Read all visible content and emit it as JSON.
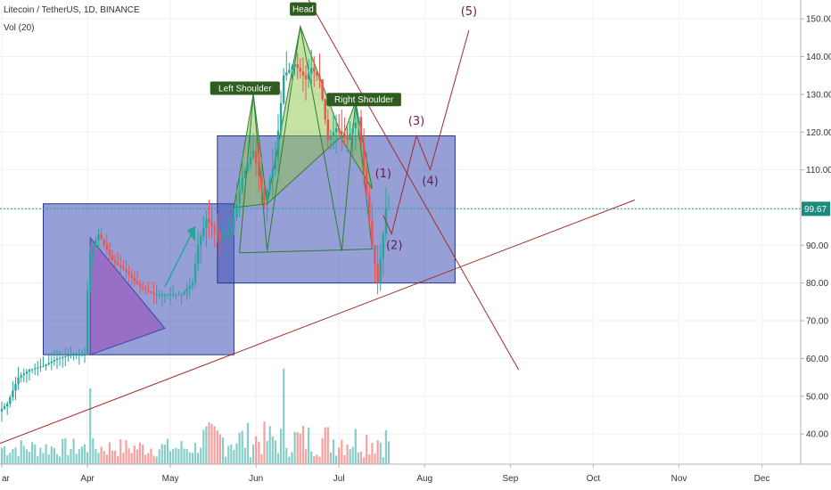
{
  "header": {
    "symbol": "Litecoin / TetherUS, 1D, BINANCE",
    "volume_indicator": "Vol (20)"
  },
  "colors": {
    "up": "#26a69a",
    "down": "#ef5350",
    "box_fill": "#3f51b5",
    "pattern_fill_green": "#8bc34a",
    "pattern_fill_purple": "#9c27b0",
    "trendline": "#a52a2a",
    "label_bg": "#2e5d1f",
    "wave_label": "#6a1b4d",
    "price_line": "#26a69a",
    "price_badge": "#1b8a7f"
  },
  "chart_data": {
    "type": "candlestick",
    "x_axis": {
      "type": "date",
      "range": [
        "2019-03-01",
        "2019-12-31"
      ],
      "tick_labels": [
        {
          "date": "2019-03-01",
          "label": "ar"
        },
        {
          "date": "2019-04-01",
          "label": "Apr"
        },
        {
          "date": "2019-05-01",
          "label": "May"
        },
        {
          "date": "2019-06-01",
          "label": "Jun"
        },
        {
          "date": "2019-07-01",
          "label": "Jul"
        },
        {
          "date": "2019-08-01",
          "label": "Aug"
        },
        {
          "date": "2019-09-01",
          "label": "Sep"
        },
        {
          "date": "2019-10-01",
          "label": "Oct"
        },
        {
          "date": "2019-11-01",
          "label": "Nov"
        },
        {
          "date": "2019-12-01",
          "label": "Dec"
        }
      ]
    },
    "y_axis": {
      "range": [
        32,
        155
      ],
      "ticks": [
        40,
        50,
        60,
        70,
        80,
        90,
        100,
        110,
        120,
        130,
        140,
        150
      ],
      "tick_labels": [
        "40.00",
        "50.00",
        "60.00",
        "70.00",
        "80.00",
        "90.00",
        "",
        "110.00",
        "120.00",
        "130.00",
        "140.00",
        "150.00"
      ]
    },
    "last_price": 99.67,
    "last_price_label": "99.67",
    "price_path": [
      [
        "2019-03-01",
        46
      ],
      [
        "2019-03-04",
        48
      ],
      [
        "2019-03-08",
        55
      ],
      [
        "2019-03-12",
        57
      ],
      [
        "2019-03-17",
        58
      ],
      [
        "2019-03-22",
        60
      ],
      [
        "2019-03-27",
        61
      ],
      [
        "2019-04-01",
        61
      ],
      [
        "2019-04-02",
        78
      ],
      [
        "2019-04-03",
        88
      ],
      [
        "2019-04-06",
        93
      ],
      [
        "2019-04-11",
        86
      ],
      [
        "2019-04-16",
        83
      ],
      [
        "2019-04-21",
        79
      ],
      [
        "2019-04-26",
        77
      ],
      [
        "2019-05-01",
        77
      ],
      [
        "2019-05-06",
        77
      ],
      [
        "2019-05-10",
        80
      ],
      [
        "2019-05-12",
        90
      ],
      [
        "2019-05-15",
        97
      ],
      [
        "2019-05-20",
        92
      ],
      [
        "2019-05-24",
        94
      ],
      [
        "2019-05-28",
        108
      ],
      [
        "2019-06-01",
        115
      ],
      [
        "2019-06-05",
        102
      ],
      [
        "2019-06-09",
        113
      ],
      [
        "2019-06-12",
        135
      ],
      [
        "2019-06-16",
        138
      ],
      [
        "2019-06-20",
        134
      ],
      [
        "2019-06-22",
        137
      ],
      [
        "2019-06-25",
        134
      ],
      [
        "2019-06-28",
        118
      ],
      [
        "2019-07-01",
        121
      ],
      [
        "2019-07-05",
        118
      ],
      [
        "2019-07-09",
        124
      ],
      [
        "2019-07-11",
        110
      ],
      [
        "2019-07-14",
        90
      ],
      [
        "2019-07-16",
        80
      ],
      [
        "2019-07-18",
        93
      ],
      [
        "2019-07-19",
        99.67
      ]
    ],
    "volume_range": [
      0,
      60
    ],
    "volume": {
      "min": 4,
      "max": 58,
      "bars": 141
    },
    "boxes": [
      {
        "from": "2019-03-16",
        "to": "2019-05-24",
        "low": 61,
        "high": 101
      },
      {
        "from": "2019-05-18",
        "to": "2019-08-12",
        "low": 80,
        "high": 119
      }
    ],
    "annotations": [
      {
        "text": "Left Shoulder",
        "date": "2019-05-28",
        "price": 131.5
      },
      {
        "text": "Head",
        "date": "2019-06-18",
        "price": 152.5
      },
      {
        "text": "Right Shoulder",
        "date": "2019-07-10",
        "price": 128.5
      }
    ],
    "wave_labels": [
      {
        "text": "(1)",
        "date": "2019-07-17",
        "price": 108
      },
      {
        "text": "(2)",
        "date": "2019-07-21",
        "price": 89
      },
      {
        "text": "(3)",
        "date": "2019-07-29",
        "price": 122
      },
      {
        "text": "(4)",
        "date": "2019-08-03",
        "price": 106
      },
      {
        "text": "(5)",
        "date": "2019-08-17",
        "price": 151
      }
    ]
  }
}
